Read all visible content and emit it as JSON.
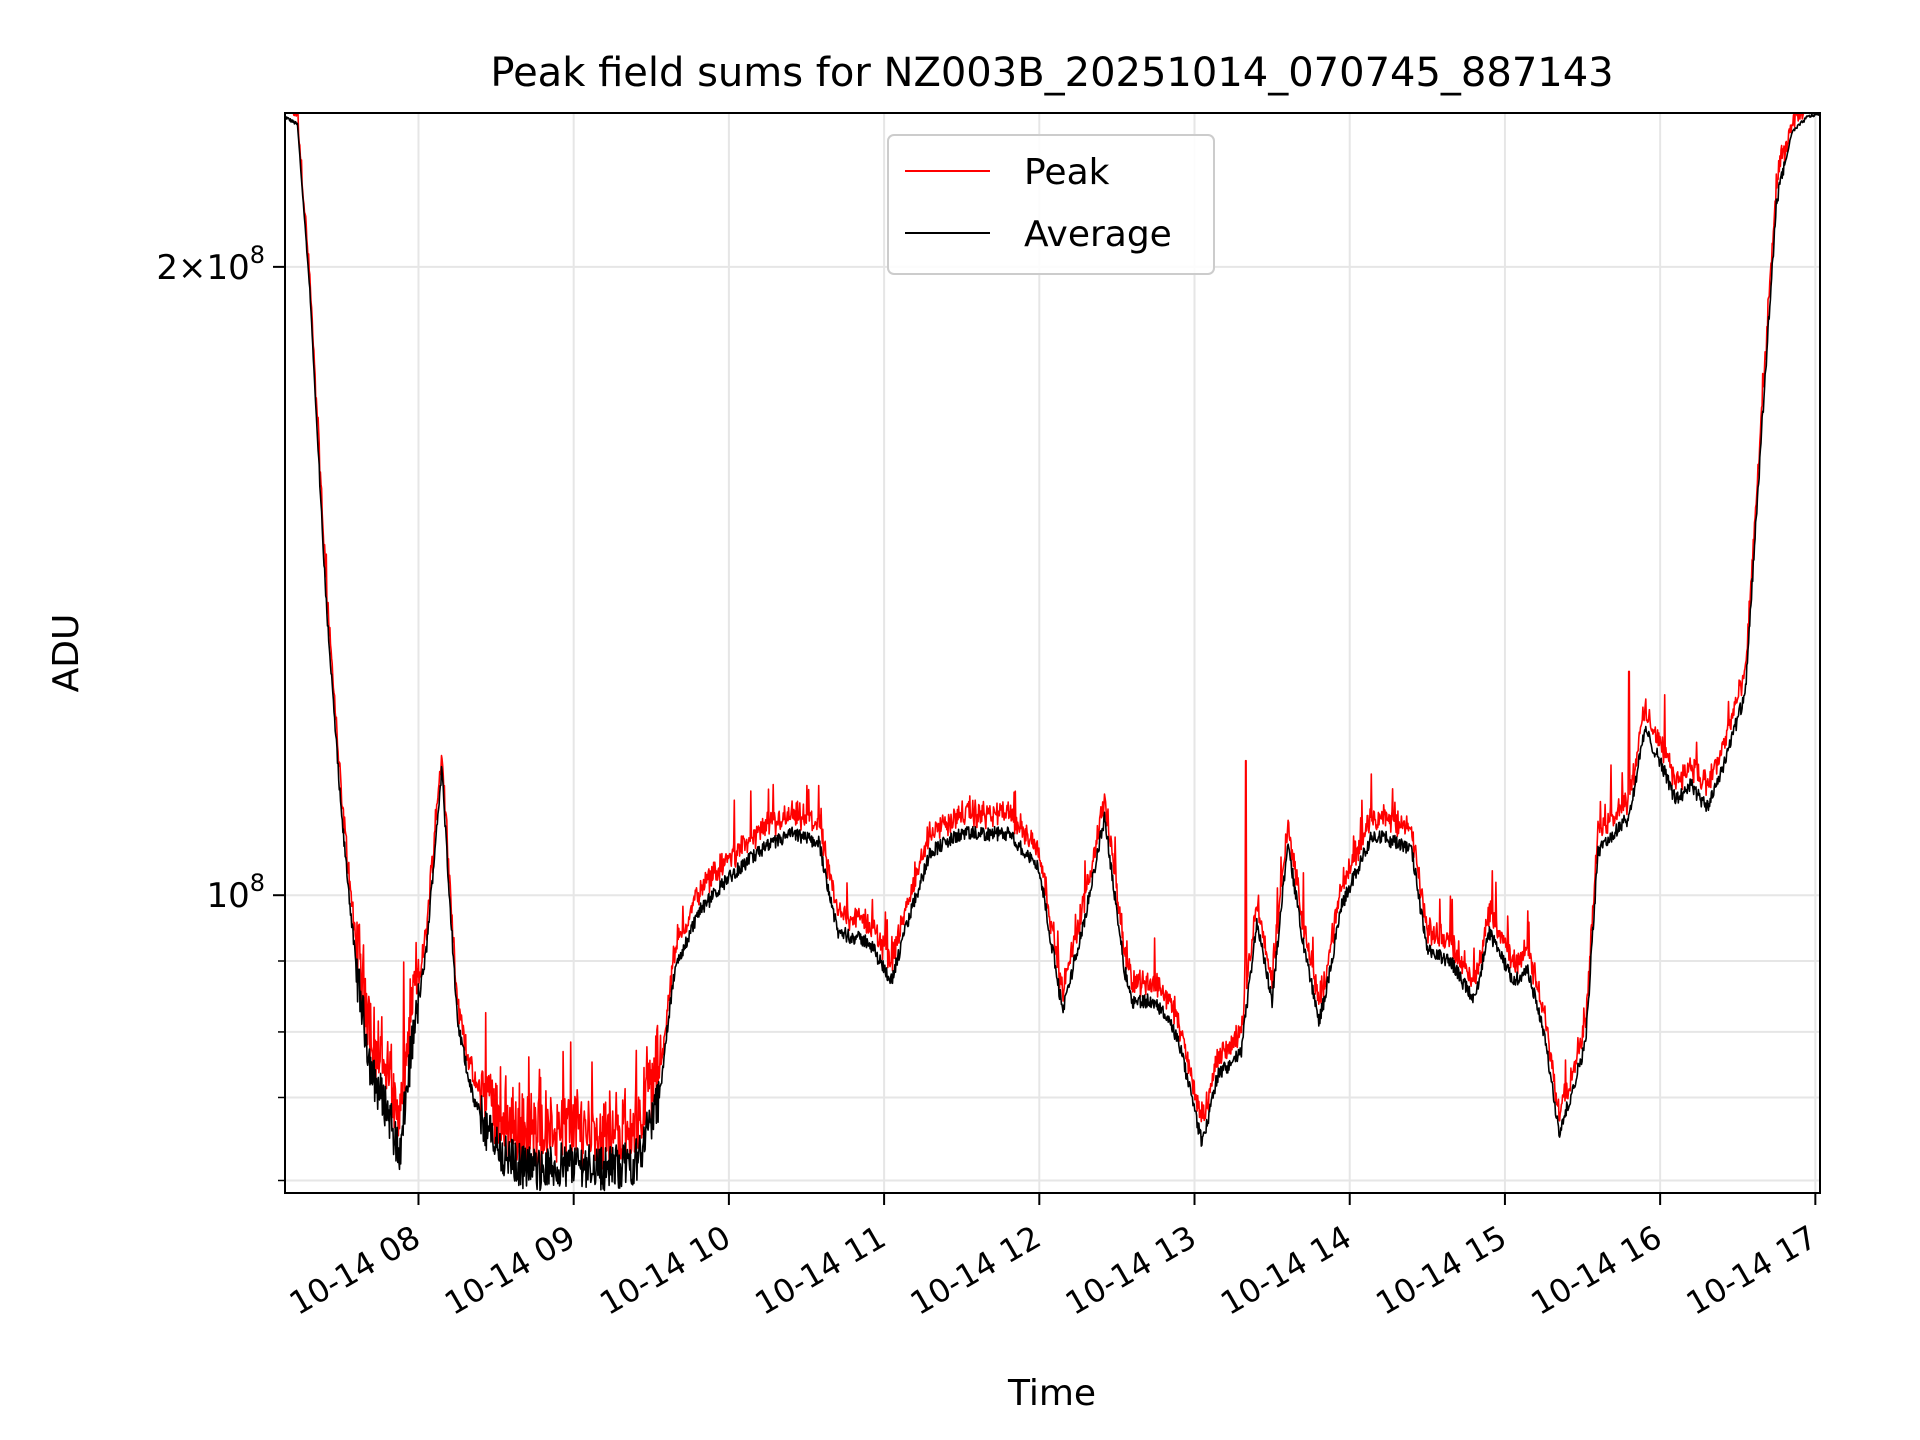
{
  "chart_data": {
    "type": "line",
    "title": "Peak field sums for NZ003B_20251014_070745_887143",
    "xlabel": "Time",
    "ylabel": "ADU",
    "yscale": "log",
    "ylim": [
      72000000,
      237000000
    ],
    "xlim_hours": [
      7.14,
      17.03
    ],
    "grid": true,
    "legend_position": "upper center",
    "x_ticks": [
      {
        "value": 8,
        "label": "10-14 08"
      },
      {
        "value": 9,
        "label": "10-14 09"
      },
      {
        "value": 10,
        "label": "10-14 10"
      },
      {
        "value": 11,
        "label": "10-14 11"
      },
      {
        "value": 12,
        "label": "10-14 12"
      },
      {
        "value": 13,
        "label": "10-14 13"
      },
      {
        "value": 14,
        "label": "10-14 14"
      },
      {
        "value": 15,
        "label": "10-14 15"
      },
      {
        "value": 16,
        "label": "10-14 16"
      },
      {
        "value": 17,
        "label": "10-14 17"
      }
    ],
    "y_ticks_major": [
      {
        "value": 100000000,
        "base": "10",
        "exp": "8",
        "label_main": "10"
      },
      {
        "value": 200000000,
        "base": "2×10",
        "exp": "8",
        "label_main": "2×10"
      }
    ],
    "y_ticks_minor": [
      73000000,
      80000000,
      86000000,
      93000000
    ],
    "series": [
      {
        "name": "Peak",
        "color": "#ff0000",
        "role": "peak"
      },
      {
        "name": "Average",
        "color": "#000000",
        "role": "average"
      }
    ],
    "average_profile": {
      "x": [
        7.14,
        7.22,
        7.3,
        7.4,
        7.5,
        7.6,
        7.7,
        7.8,
        7.88,
        7.95,
        8.05,
        8.15,
        8.25,
        8.35,
        8.45,
        8.55,
        8.7,
        8.85,
        9.0,
        9.2,
        9.4,
        9.55,
        9.65,
        9.8,
        10.0,
        10.2,
        10.4,
        10.58,
        10.7,
        10.9,
        11.05,
        11.15,
        11.3,
        11.5,
        11.8,
        12.0,
        12.15,
        12.3,
        12.42,
        12.55,
        12.6,
        12.7,
        12.8,
        12.9,
        13.05,
        13.15,
        13.3,
        13.4,
        13.5,
        13.6,
        13.7,
        13.8,
        13.85,
        13.95,
        14.15,
        14.3,
        14.4,
        14.5,
        14.65,
        14.8,
        14.9,
        15.05,
        15.15,
        15.25,
        15.35,
        15.42,
        15.52,
        15.6,
        15.7,
        15.8,
        15.9,
        16.0,
        16.1,
        16.2,
        16.3,
        16.4,
        16.55,
        16.65,
        16.75,
        16.85,
        16.95,
        17.03
      ],
      "values": [
        236000000,
        234000000,
        195000000,
        140000000,
        110000000,
        92000000,
        82000000,
        79000000,
        75000000,
        84000000,
        94000000,
        115000000,
        87000000,
        80000000,
        77000000,
        75000000,
        74000000,
        74000000,
        74500000,
        74000000,
        74500000,
        80000000,
        92000000,
        98000000,
        102000000,
        105000000,
        107000000,
        106000000,
        96000000,
        95000000,
        91000000,
        97000000,
        105000000,
        107000000,
        107000000,
        103000000,
        88000000,
        98000000,
        109000000,
        92000000,
        89000000,
        89000000,
        88000000,
        85000000,
        76000000,
        82000000,
        84000000,
        97000000,
        89000000,
        106000000,
        95000000,
        87000000,
        90000000,
        99000000,
        107000000,
        106000000,
        105000000,
        94000000,
        93000000,
        89000000,
        96000000,
        91000000,
        92000000,
        86000000,
        77000000,
        80000000,
        85000000,
        105000000,
        107000000,
        109000000,
        120000000,
        116000000,
        111000000,
        113000000,
        110000000,
        115000000,
        125000000,
        165000000,
        215000000,
        232000000,
        236000000,
        237000000
      ]
    }
  }
}
